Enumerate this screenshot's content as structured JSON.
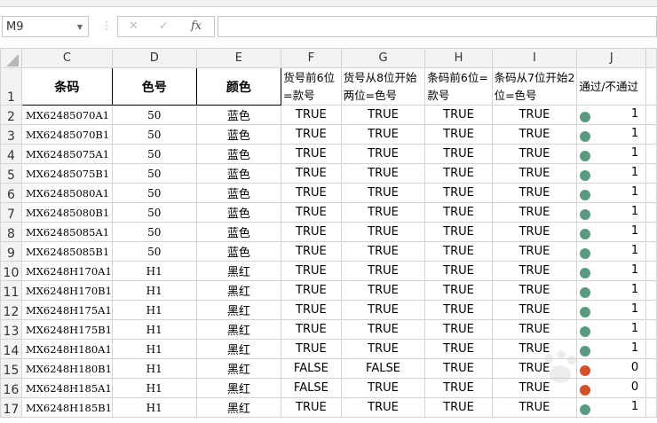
{
  "name_box": {
    "value": "M9"
  },
  "formula_bar": {
    "cancel_icon": "✕",
    "enter_icon": "✓",
    "fx_icon": "fx",
    "value": ""
  },
  "columns": [
    "C",
    "D",
    "E",
    "F",
    "G",
    "H",
    "I",
    "J"
  ],
  "header_row": {
    "number": "1",
    "cells": [
      "条码",
      "色号",
      "颜色",
      "货号前6位=款号",
      "货号从8位开始两位=色号",
      "条码前6位=款号",
      "条码从7位开始2位=色号",
      "通过/不通过"
    ]
  },
  "rows": [
    {
      "n": "2",
      "c": "MX62485070A1",
      "d": "50",
      "e": "蓝色",
      "f": "TRUE",
      "g": "TRUE",
      "h": "TRUE",
      "i": "TRUE",
      "j": "1",
      "status": "pass"
    },
    {
      "n": "3",
      "c": "MX62485070B1",
      "d": "50",
      "e": "蓝色",
      "f": "TRUE",
      "g": "TRUE",
      "h": "TRUE",
      "i": "TRUE",
      "j": "1",
      "status": "pass"
    },
    {
      "n": "4",
      "c": "MX62485075A1",
      "d": "50",
      "e": "蓝色",
      "f": "TRUE",
      "g": "TRUE",
      "h": "TRUE",
      "i": "TRUE",
      "j": "1",
      "status": "pass"
    },
    {
      "n": "5",
      "c": "MX62485075B1",
      "d": "50",
      "e": "蓝色",
      "f": "TRUE",
      "g": "TRUE",
      "h": "TRUE",
      "i": "TRUE",
      "j": "1",
      "status": "pass"
    },
    {
      "n": "6",
      "c": "MX62485080A1",
      "d": "50",
      "e": "蓝色",
      "f": "TRUE",
      "g": "TRUE",
      "h": "TRUE",
      "i": "TRUE",
      "j": "1",
      "status": "pass"
    },
    {
      "n": "7",
      "c": "MX62485080B1",
      "d": "50",
      "e": "蓝色",
      "f": "TRUE",
      "g": "TRUE",
      "h": "TRUE",
      "i": "TRUE",
      "j": "1",
      "status": "pass"
    },
    {
      "n": "8",
      "c": "MX62485085A1",
      "d": "50",
      "e": "蓝色",
      "f": "TRUE",
      "g": "TRUE",
      "h": "TRUE",
      "i": "TRUE",
      "j": "1",
      "status": "pass"
    },
    {
      "n": "9",
      "c": "MX62485085B1",
      "d": "50",
      "e": "蓝色",
      "f": "TRUE",
      "g": "TRUE",
      "h": "TRUE",
      "i": "TRUE",
      "j": "1",
      "status": "pass"
    },
    {
      "n": "10",
      "c": "MX6248H170A1",
      "d": "H1",
      "e": "黑红",
      "f": "TRUE",
      "g": "TRUE",
      "h": "TRUE",
      "i": "TRUE",
      "j": "1",
      "status": "pass"
    },
    {
      "n": "11",
      "c": "MX6248H170B1",
      "d": "H1",
      "e": "黑红",
      "f": "TRUE",
      "g": "TRUE",
      "h": "TRUE",
      "i": "TRUE",
      "j": "1",
      "status": "pass"
    },
    {
      "n": "12",
      "c": "MX6248H175A1",
      "d": "H1",
      "e": "黑红",
      "f": "TRUE",
      "g": "TRUE",
      "h": "TRUE",
      "i": "TRUE",
      "j": "1",
      "status": "pass"
    },
    {
      "n": "13",
      "c": "MX6248H175B1",
      "d": "H1",
      "e": "黑红",
      "f": "TRUE",
      "g": "TRUE",
      "h": "TRUE",
      "i": "TRUE",
      "j": "1",
      "status": "pass"
    },
    {
      "n": "14",
      "c": "MX6248H180A1",
      "d": "H1",
      "e": "黑红",
      "f": "TRUE",
      "g": "TRUE",
      "h": "TRUE",
      "i": "TRUE",
      "j": "1",
      "status": "pass"
    },
    {
      "n": "15",
      "c": "MX6248H180B1",
      "d": "H1",
      "e": "黑红",
      "f": "FALSE",
      "g": "FALSE",
      "h": "TRUE",
      "i": "TRUE",
      "j": "0",
      "status": "fail"
    },
    {
      "n": "16",
      "c": "MX6248H185A1",
      "d": "H1",
      "e": "黑红",
      "f": "FALSE",
      "g": "TRUE",
      "h": "TRUE",
      "i": "TRUE",
      "j": "0",
      "status": "fail"
    },
    {
      "n": "17",
      "c": "MX6248H185B1",
      "d": "H1",
      "e": "黑红",
      "f": "TRUE",
      "g": "TRUE",
      "h": "TRUE",
      "i": "TRUE",
      "j": "1",
      "status": "pass"
    }
  ],
  "colors": {
    "pass": "#5a9a80",
    "fail": "#d4502a"
  },
  "watermark": "Baidu经验"
}
